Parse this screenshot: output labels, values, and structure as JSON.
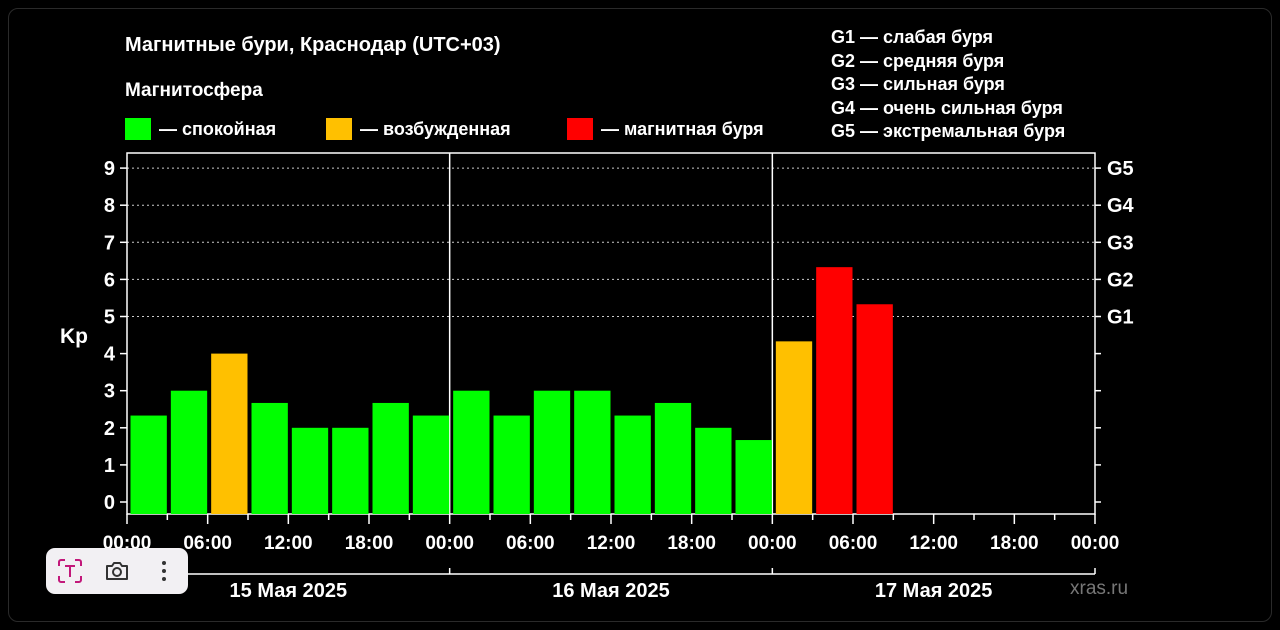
{
  "title": "Магнитные бури, Краснодар (UTC+03)",
  "subtitle": "Магнитосфера",
  "legend": [
    {
      "label": "— спокойная",
      "color": "#00ff00"
    },
    {
      "label": "— возбужденная",
      "color": "#ffc000"
    },
    {
      "label": "— магнитная буря",
      "color": "#ff0000"
    }
  ],
  "g_scale": [
    "G1 — слабая буря",
    "G2 — средняя буря",
    "G3 — сильная буря",
    "G4 — очень сильная буря",
    "G5 — экстремальная буря"
  ],
  "source": "xras.ru",
  "toolbar": {
    "text_icon": "text-recognition-icon",
    "camera_icon": "camera-icon",
    "more_icon": "more-vertical-icon"
  },
  "chart_data": {
    "type": "bar",
    "ylabel": "Kp",
    "ylim": [
      0,
      9
    ],
    "y_ticks": [
      "0",
      "1",
      "2",
      "3",
      "4",
      "5",
      "6",
      "7",
      "8",
      "9"
    ],
    "right_ticks": [
      {
        "label": "G1",
        "kp": 5
      },
      {
        "label": "G2",
        "kp": 6
      },
      {
        "label": "G3",
        "kp": 7
      },
      {
        "label": "G4",
        "kp": 8
      },
      {
        "label": "G5",
        "kp": 9
      }
    ],
    "x_tick_labels": [
      "00:00",
      "06:00",
      "12:00",
      "18:00",
      "00:00",
      "06:00",
      "12:00",
      "18:00",
      "00:00",
      "06:00",
      "12:00",
      "18:00",
      "00:00"
    ],
    "days": [
      "15 Мая 2025",
      "16 Мая 2025",
      "17 Мая 2025"
    ],
    "intervals_per_day": 8,
    "values": [
      2.33,
      3.0,
      4.0,
      2.67,
      2.0,
      2.0,
      2.67,
      2.33,
      3.0,
      2.33,
      3.0,
      3.0,
      2.33,
      2.67,
      2.0,
      1.67,
      4.33,
      6.33,
      5.33
    ],
    "levels": [
      "quiet",
      "quiet",
      "active",
      "quiet",
      "quiet",
      "quiet",
      "quiet",
      "quiet",
      "quiet",
      "quiet",
      "quiet",
      "quiet",
      "quiet",
      "quiet",
      "quiet",
      "quiet",
      "active",
      "storm",
      "storm"
    ],
    "level_colors": {
      "quiet": "#00ff00",
      "active": "#ffc000",
      "storm": "#ff0000"
    }
  }
}
